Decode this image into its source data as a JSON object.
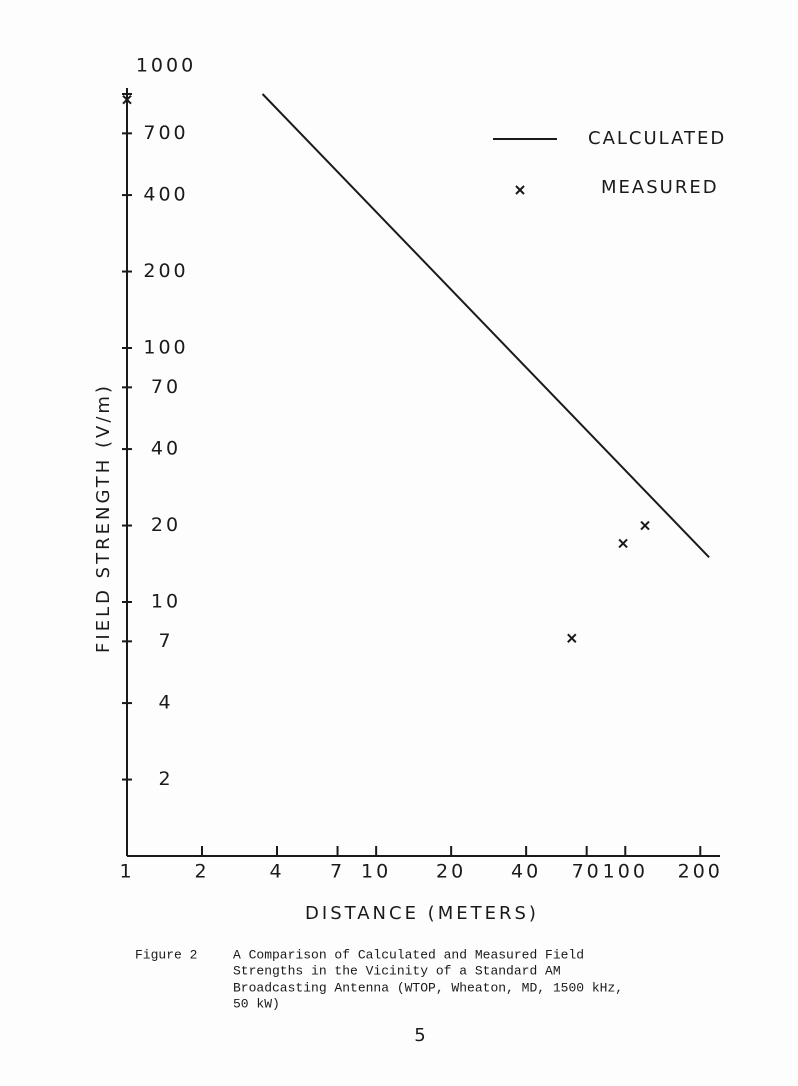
{
  "chart_data": {
    "type": "line",
    "y_label": "FIELD STRENGTH (V/m)",
    "x_label": "DISTANCE (METERS)",
    "log_x": true,
    "log_y": true,
    "grid": false,
    "legend": "top-right",
    "xlim": [
      1,
      240
    ],
    "ylim": [
      1,
      1000
    ],
    "xticks": [
      1,
      2,
      4,
      7,
      10,
      20,
      40,
      70,
      100,
      200
    ],
    "yticks": [
      1000,
      700,
      400,
      200,
      100,
      70,
      40,
      20,
      10,
      7,
      4,
      2
    ],
    "series": [
      {
        "name": "CALCULATED",
        "type": "line",
        "color": "#1a1a1a",
        "x": [
          3.5,
          217
        ],
        "values": [
          1000,
          15
        ]
      },
      {
        "name": "MEASURED",
        "type": "scatter",
        "color": "#1a1a1a",
        "x": [
          1,
          61,
          98,
          120
        ],
        "values": [
          950,
          7.2,
          17,
          20
        ]
      }
    ]
  },
  "caption": {
    "label": "Figure 2",
    "lines": [
      "A Comparison of Calculated and Measured Field",
      "Strengths in the Vicinity of a Standard AM",
      "Broadcasting Antenna (WTOP, Wheaton, MD, 1500 kHz,",
      "50 kW)"
    ]
  },
  "page_number": "5"
}
